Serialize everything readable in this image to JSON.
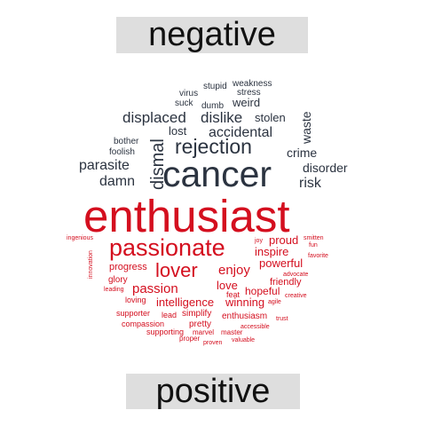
{
  "colors": {
    "negative": "#2b3340",
    "positive": "#d40f1f",
    "label_bg": "#dedede",
    "label_text": "#111111"
  },
  "labels": {
    "negative": "negative",
    "positive": "positive"
  },
  "negative_words": [
    "cancer",
    "rejection",
    "dismal",
    "displaced",
    "dislike",
    "accidental",
    "parasite",
    "damn",
    "risk",
    "disorder",
    "crime",
    "waste",
    "stolen",
    "weird",
    "lost",
    "bother",
    "foolish",
    "suck",
    "dumb",
    "virus",
    "stupid",
    "weakness",
    "stress"
  ],
  "positive_words": [
    "enthusiast",
    "passionate",
    "lover",
    "passion",
    "enjoy",
    "powerful",
    "proud",
    "inspire",
    "intelligence",
    "winning",
    "love",
    "hopeful",
    "friendly",
    "progress",
    "glory",
    "simplify",
    "enthusiasm",
    "pretty",
    "supporter",
    "lead",
    "loving",
    "leading",
    "innovation",
    "ingenious",
    "joy",
    "smitten",
    "fun",
    "favorite",
    "advocate",
    "feat",
    "agile",
    "creative",
    "compassion",
    "supporting",
    "marvel",
    "master",
    "accessible",
    "trust",
    "proper",
    "proven",
    "valuable"
  ]
}
